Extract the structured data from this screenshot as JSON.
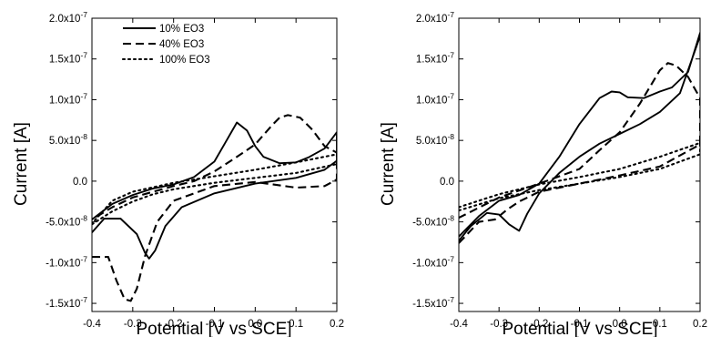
{
  "chart_data": [
    {
      "type": "line",
      "xlabel": "Potential [V vs SCE]",
      "ylabel": "Current [A]",
      "xlim": [
        -0.4,
        0.2
      ],
      "ylim": [
        -1.6e-07,
        2e-07
      ],
      "grid": false,
      "legend_position": "top-left",
      "x_ticks": [
        "-0.4",
        "-0.3",
        "-0.2",
        "-0.1",
        "0.0",
        "0.1",
        "0.2"
      ],
      "y_ticks": [
        {
          "mantissa": "2.0",
          "exp": "-7"
        },
        {
          "mantissa": "1.5",
          "exp": "-7"
        },
        {
          "mantissa": "1.0",
          "exp": "-7"
        },
        {
          "mantissa": "5.0",
          "exp": "-8"
        },
        {
          "mantissa": "0.0",
          "exp": ""
        },
        {
          "mantissa": "-5.0",
          "exp": "-8"
        },
        {
          "mantissa": "-1.0",
          "exp": "-7"
        },
        {
          "mantissa": "-1.5",
          "exp": "-7"
        }
      ],
      "series": [
        {
          "name": "10% EO3",
          "style": "solid",
          "x": [
            -0.4,
            -0.37,
            -0.33,
            -0.29,
            -0.27,
            -0.26,
            -0.245,
            -0.22,
            -0.18,
            -0.1,
            0.0,
            0.1,
            0.17,
            0.2,
            0.2,
            0.17,
            0.13,
            0.1,
            0.06,
            0.02,
            0.0,
            -0.02,
            -0.045,
            -0.07,
            -0.1,
            -0.15,
            -0.2,
            -0.25,
            -0.3,
            -0.35,
            -0.4
          ],
          "y": [
            -6.3e-08,
            -4.6e-08,
            -4.6e-08,
            -6.5e-08,
            -8.8e-08,
            -9.5e-08,
            -8.5e-08,
            -5.5e-08,
            -3.2e-08,
            -1.5e-08,
            -3e-09,
            4e-09,
            1.4e-08,
            2.5e-08,
            6e-08,
            4e-08,
            2.9e-08,
            2.3e-08,
            2.2e-08,
            3e-08,
            4.3e-08,
            6.2e-08,
            7.2e-08,
            5e-08,
            2.4e-08,
            5e-09,
            -4e-09,
            -9e-09,
            -1.7e-08,
            -2.8e-08,
            -4.7e-08
          ]
        },
        {
          "name": "40% EO3",
          "style": "dashed",
          "x": [
            -0.4,
            -0.36,
            -0.34,
            -0.32,
            -0.305,
            -0.29,
            -0.27,
            -0.24,
            -0.2,
            -0.1,
            0.0,
            0.1,
            0.17,
            0.2,
            0.2,
            0.17,
            0.14,
            0.11,
            0.08,
            0.06,
            0.04,
            0.0,
            -0.05,
            -0.1,
            -0.15,
            -0.2,
            -0.25,
            -0.3,
            -0.35,
            -0.4
          ],
          "y": [
            -9.3e-08,
            -9.3e-08,
            -1.22e-07,
            -1.45e-07,
            -1.47e-07,
            -1.32e-07,
            -9.2e-08,
            -5e-08,
            -2.4e-08,
            -6e-09,
            -1e-09,
            -8e-09,
            -6e-09,
            2e-09,
            3.5e-08,
            4.3e-08,
            6.3e-08,
            7.8e-08,
            8.1e-08,
            7.8e-08,
            6.8e-08,
            4.5e-08,
            2.8e-08,
            1.2e-08,
            0.0,
            -6e-09,
            -1.3e-08,
            -2e-08,
            -3.2e-08,
            -4.7e-08
          ]
        },
        {
          "name": "100% EO3",
          "style": "dotted",
          "x": [
            -0.4,
            -0.35,
            -0.3,
            -0.25,
            -0.2,
            -0.1,
            0.0,
            0.1,
            0.2,
            0.2,
            0.1,
            0.0,
            -0.1,
            -0.2,
            -0.3,
            -0.35,
            -0.4
          ],
          "y": [
            -5.3e-08,
            -3.7e-08,
            -2.5e-08,
            -1.6e-08,
            -1e-08,
            -2e-09,
            4e-09,
            1e-08,
            2.1e-08,
            3.3e-08,
            2.3e-08,
            1.4e-08,
            6e-09,
            -2e-09,
            -1.3e-08,
            -2.4e-08,
            -5.2e-08
          ]
        }
      ]
    },
    {
      "type": "line",
      "xlabel": "Potential [V vs SCE]",
      "ylabel": "Current [A]",
      "xlim": [
        -0.4,
        0.2
      ],
      "ylim": [
        -1.6e-07,
        2e-07
      ],
      "grid": false,
      "x_ticks": [
        "-0.4",
        "-0.3",
        "-0.2",
        "-0.1",
        "0.0",
        "0.1",
        "0.2"
      ],
      "y_ticks": [
        {
          "mantissa": "2.0",
          "exp": "-7"
        },
        {
          "mantissa": "1.5",
          "exp": "-7"
        },
        {
          "mantissa": "1.0",
          "exp": "-7"
        },
        {
          "mantissa": "5.0",
          "exp": "-8"
        },
        {
          "mantissa": "0.0",
          "exp": ""
        },
        {
          "mantissa": "-5.0",
          "exp": "-8"
        },
        {
          "mantissa": "-1.0",
          "exp": "-7"
        },
        {
          "mantissa": "-1.5",
          "exp": "-7"
        }
      ],
      "series": [
        {
          "name": "10% EO3",
          "style": "solid",
          "x": [
            -0.4,
            -0.37,
            -0.33,
            -0.3,
            -0.275,
            -0.25,
            -0.23,
            -0.2,
            -0.15,
            -0.1,
            -0.05,
            0.0,
            0.05,
            0.1,
            0.15,
            0.2,
            0.2,
            0.17,
            0.13,
            0.1,
            0.06,
            0.02,
            0.0,
            -0.02,
            -0.05,
            -0.1,
            -0.15,
            -0.2,
            -0.25,
            -0.3,
            -0.35,
            -0.4
          ],
          "y": [
            -7.3e-08,
            -5.5e-08,
            -3.9e-08,
            -4.1e-08,
            -5.3e-08,
            -6.1e-08,
            -4e-08,
            -1.5e-08,
            1e-08,
            3e-08,
            4.6e-08,
            5.8e-08,
            7e-08,
            8.5e-08,
            1.08e-07,
            1.78e-07,
            1.82e-07,
            1.34e-07,
            1.15e-07,
            1.1e-07,
            1.02e-07,
            1.03e-07,
            1.09e-07,
            1.1e-07,
            1.02e-07,
            7e-08,
            3e-08,
            -3e-09,
            -1.7e-08,
            -2.4e-08,
            -4.3e-08,
            -6.8e-08
          ]
        },
        {
          "name": "40% EO3",
          "style": "dashed",
          "x": [
            -0.4,
            -0.35,
            -0.31,
            -0.28,
            -0.25,
            -0.2,
            -0.1,
            0.0,
            0.1,
            0.2,
            0.2,
            0.17,
            0.14,
            0.12,
            0.1,
            0.05,
            0.0,
            -0.05,
            -0.1,
            -0.2,
            -0.3,
            -0.4
          ],
          "y": [
            -7.6e-08,
            -5e-08,
            -4.7e-08,
            -3.5e-08,
            -2.5e-08,
            -1.3e-08,
            -3e-09,
            7e-09,
            1.8e-08,
            4.5e-08,
            1.02e-07,
            1.28e-07,
            1.42e-07,
            1.45e-07,
            1.36e-07,
            9.5e-08,
            6e-08,
            3.8e-08,
            1.5e-08,
            -3e-09,
            -2e-08,
            -4.5e-08
          ]
        },
        {
          "name": "100% EO3",
          "style": "dotted",
          "x": [
            -0.4,
            -0.3,
            -0.2,
            -0.1,
            0.0,
            0.1,
            0.2,
            0.2,
            0.1,
            0.0,
            -0.1,
            -0.2,
            -0.3,
            -0.4
          ],
          "y": [
            -3.6e-08,
            -2.1e-08,
            -1.1e-08,
            -3e-09,
            5e-09,
            1.5e-08,
            3.3e-08,
            4.7e-08,
            3e-08,
            1.5e-08,
            5e-09,
            -4e-09,
            -1.6e-08,
            -3.2e-08
          ]
        }
      ]
    }
  ]
}
